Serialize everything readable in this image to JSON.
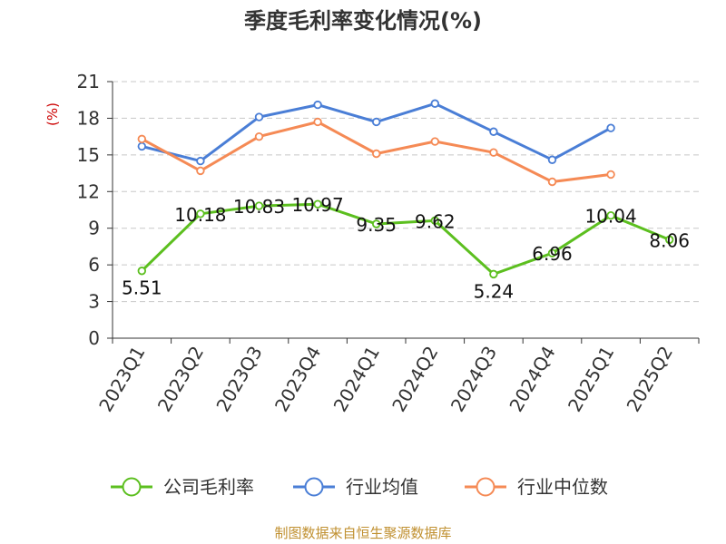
{
  "chart_data": {
    "type": "line",
    "title": "季度毛利率变化情况(%)",
    "ylabel": "(%)",
    "xlabel": "",
    "ylim": [
      0,
      21
    ],
    "yticks": [
      0,
      3,
      6,
      9,
      12,
      15,
      18,
      21
    ],
    "grid": true,
    "legend_position": "bottom",
    "categories": [
      "2023Q1",
      "2023Q2",
      "2023Q3",
      "2023Q4",
      "2024Q1",
      "2024Q2",
      "2024Q3",
      "2024Q4",
      "2025Q1",
      "2025Q2"
    ],
    "series": [
      {
        "name": "公司毛利率",
        "color": "#5cbf1f",
        "values": [
          5.51,
          10.18,
          10.83,
          10.97,
          9.35,
          9.62,
          5.24,
          6.96,
          10.04,
          8.06
        ],
        "labels": [
          "5.51",
          "10.18",
          "10.83",
          "10.97",
          "9.35",
          "9.62",
          "5.24",
          "6.96",
          "10.04",
          "8.06"
        ]
      },
      {
        "name": "行业均值",
        "color": "#4a7ed6",
        "values": [
          15.7,
          14.5,
          18.1,
          19.1,
          17.7,
          19.2,
          16.9,
          14.6,
          17.2,
          null
        ]
      },
      {
        "name": "行业中位数",
        "color": "#f58a55",
        "values": [
          16.3,
          13.7,
          16.5,
          17.7,
          15.1,
          16.1,
          15.2,
          12.8,
          13.4,
          null
        ]
      }
    ]
  },
  "source": "制图数据来自恒生聚源数据库"
}
